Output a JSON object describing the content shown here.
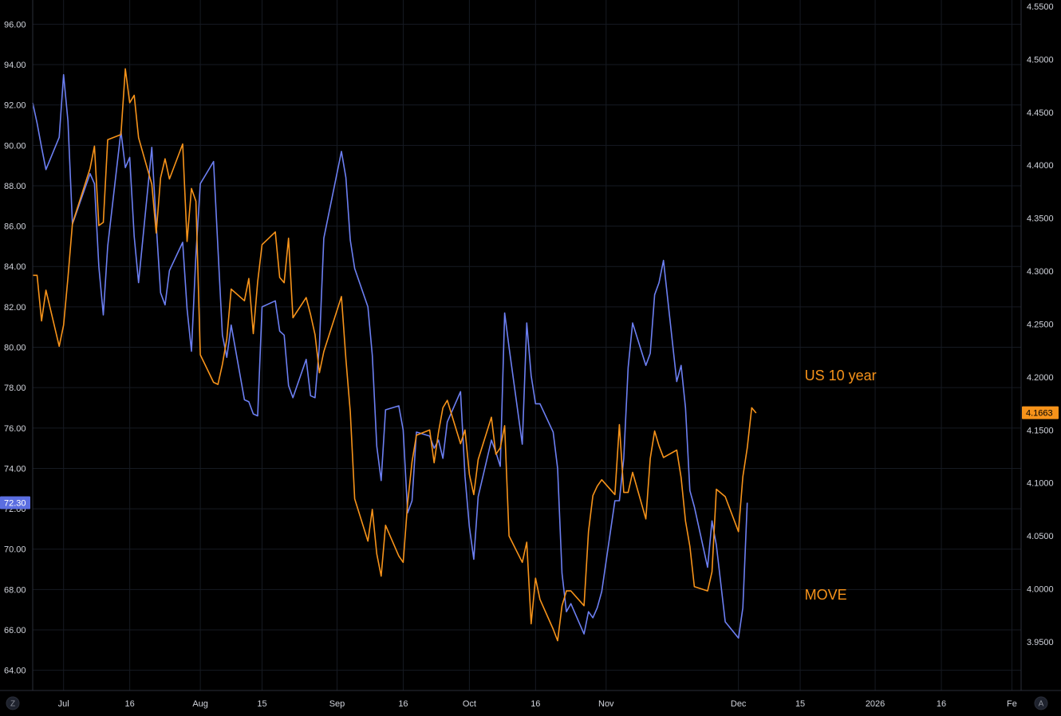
{
  "chart_data": {
    "type": "line",
    "grid": true,
    "left_axis": {
      "ylim": [
        63.0,
        97.2
      ],
      "ticks": [
        64,
        66,
        68,
        70,
        72,
        74,
        76,
        78,
        80,
        82,
        84,
        86,
        88,
        90,
        92,
        94,
        96
      ],
      "tick_labels": [
        "64.00",
        "66.00",
        "68.00",
        "70.00",
        "72.00",
        "74.00",
        "76.00",
        "78.00",
        "80.00",
        "82.00",
        "84.00",
        "86.00",
        "88.00",
        "90.00",
        "92.00",
        "94.00",
        "96.00"
      ],
      "last_value_label": "72.30",
      "last_value": 72.3,
      "badge_color": "#5b6ee1"
    },
    "right_axis": {
      "ylim": [
        3.904,
        4.556
      ],
      "ticks": [
        3.95,
        4.0,
        4.05,
        4.1,
        4.15,
        4.2,
        4.25,
        4.3,
        4.35,
        4.4,
        4.45,
        4.5,
        4.55
      ],
      "tick_labels": [
        "3.9500",
        "4.0000",
        "4.0500",
        "4.1000",
        "4.1500",
        "4.2000",
        "4.2500",
        "4.3000",
        "4.3500",
        "4.4000",
        "4.4500",
        "4.5000",
        "4.5500"
      ],
      "last_value_label": "4.1663",
      "last_value": 4.1663,
      "badge_color": "#f7931a"
    },
    "x_axis": {
      "labels": [
        {
          "text": "Jul",
          "date": "2025-07-01"
        },
        {
          "text": "16",
          "date": "2025-07-16"
        },
        {
          "text": "Aug",
          "date": "2025-08-01"
        },
        {
          "text": "15",
          "date": "2025-08-15"
        },
        {
          "text": "Sep",
          "date": "2025-09-01"
        },
        {
          "text": "16",
          "date": "2025-09-16"
        },
        {
          "text": "Oct",
          "date": "2025-10-01"
        },
        {
          "text": "16",
          "date": "2025-10-16"
        },
        {
          "text": "Nov",
          "date": "2025-11-01"
        },
        {
          "text": "Dec",
          "date": "2025-12-01"
        },
        {
          "text": "15",
          "date": "2025-12-15"
        },
        {
          "text": "2026",
          "date": "2026-01-01"
        },
        {
          "text": "16",
          "date": "2026-01-16"
        },
        {
          "text": "Fe",
          "date": "2026-02-01"
        }
      ]
    },
    "annotations": [
      {
        "text": "US 10 year",
        "color": "#f7931a",
        "axis": "right",
        "x": "2025-12-16",
        "y": 4.197
      },
      {
        "text": "MOVE",
        "color": "#f7931a",
        "axis": "left",
        "x": "2025-12-16",
        "y": 67.5
      }
    ],
    "series": [
      {
        "axis": "left",
        "color": "#6c7ff2",
        "points": [
          [
            "2025-06-24",
            92.1
          ],
          [
            "2025-06-25",
            91.1
          ],
          [
            "2025-06-26",
            89.9
          ],
          [
            "2025-06-27",
            88.8
          ],
          [
            "2025-06-30",
            90.4
          ],
          [
            "2025-07-01",
            93.5
          ],
          [
            "2025-07-02",
            91.2
          ],
          [
            "2025-07-03",
            86.1
          ],
          [
            "2025-07-07",
            88.6
          ],
          [
            "2025-07-08",
            88.1
          ],
          [
            "2025-07-09",
            84.0
          ],
          [
            "2025-07-10",
            81.6
          ],
          [
            "2025-07-11",
            85.0
          ],
          [
            "2025-07-14",
            90.7
          ],
          [
            "2025-07-15",
            88.9
          ],
          [
            "2025-07-16",
            89.4
          ],
          [
            "2025-07-17",
            85.5
          ],
          [
            "2025-07-18",
            83.2
          ],
          [
            "2025-07-21",
            89.9
          ],
          [
            "2025-07-22",
            86.1
          ],
          [
            "2025-07-23",
            82.7
          ],
          [
            "2025-07-24",
            82.1
          ],
          [
            "2025-07-25",
            83.8
          ],
          [
            "2025-07-28",
            85.2
          ],
          [
            "2025-07-29",
            81.9
          ],
          [
            "2025-07-30",
            79.8
          ],
          [
            "2025-07-31",
            84.6
          ],
          [
            "2025-08-01",
            88.1
          ],
          [
            "2025-08-04",
            89.2
          ],
          [
            "2025-08-05",
            84.9
          ],
          [
            "2025-08-06",
            80.6
          ],
          [
            "2025-08-07",
            79.5
          ],
          [
            "2025-08-08",
            81.1
          ],
          [
            "2025-08-11",
            77.4
          ],
          [
            "2025-08-12",
            77.3
          ],
          [
            "2025-08-13",
            76.7
          ],
          [
            "2025-08-14",
            76.6
          ],
          [
            "2025-08-15",
            82.0
          ],
          [
            "2025-08-18",
            82.3
          ],
          [
            "2025-08-19",
            80.8
          ],
          [
            "2025-08-20",
            80.6
          ],
          [
            "2025-08-21",
            78.1
          ],
          [
            "2025-08-22",
            77.5
          ],
          [
            "2025-08-25",
            79.4
          ],
          [
            "2025-08-26",
            77.6
          ],
          [
            "2025-08-27",
            77.5
          ],
          [
            "2025-08-28",
            80.1
          ],
          [
            "2025-08-29",
            85.4
          ],
          [
            "2025-09-02",
            89.7
          ],
          [
            "2025-09-03",
            88.4
          ],
          [
            "2025-09-04",
            85.3
          ],
          [
            "2025-09-05",
            83.9
          ],
          [
            "2025-09-08",
            82.0
          ],
          [
            "2025-09-09",
            79.6
          ],
          [
            "2025-09-10",
            75.1
          ],
          [
            "2025-09-11",
            73.4
          ],
          [
            "2025-09-12",
            76.9
          ],
          [
            "2025-09-15",
            77.1
          ],
          [
            "2025-09-16",
            75.9
          ],
          [
            "2025-09-17",
            71.8
          ],
          [
            "2025-09-18",
            72.4
          ],
          [
            "2025-09-19",
            75.8
          ],
          [
            "2025-09-22",
            75.6
          ],
          [
            "2025-09-23",
            75.0
          ],
          [
            "2025-09-24",
            75.4
          ],
          [
            "2025-09-25",
            74.5
          ],
          [
            "2025-09-26",
            76.3
          ],
          [
            "2025-09-29",
            77.8
          ],
          [
            "2025-09-30",
            73.6
          ],
          [
            "2025-10-01",
            71.1
          ],
          [
            "2025-10-02",
            69.5
          ],
          [
            "2025-10-03",
            72.6
          ],
          [
            "2025-10-06",
            75.4
          ],
          [
            "2025-10-07",
            74.8
          ],
          [
            "2025-10-08",
            74.1
          ],
          [
            "2025-10-09",
            81.7
          ],
          [
            "2025-10-10",
            80.0
          ],
          [
            "2025-10-13",
            75.2
          ],
          [
            "2025-10-14",
            81.2
          ],
          [
            "2025-10-15",
            78.6
          ],
          [
            "2025-10-16",
            77.2
          ],
          [
            "2025-10-17",
            77.2
          ],
          [
            "2025-10-20",
            75.8
          ],
          [
            "2025-10-21",
            74.0
          ],
          [
            "2025-10-22",
            68.8
          ],
          [
            "2025-10-23",
            66.9
          ],
          [
            "2025-10-24",
            67.3
          ],
          [
            "2025-10-27",
            65.8
          ],
          [
            "2025-10-28",
            66.9
          ],
          [
            "2025-10-29",
            66.6
          ],
          [
            "2025-10-30",
            67.1
          ],
          [
            "2025-10-31",
            67.9
          ],
          [
            "2025-11-03",
            72.4
          ],
          [
            "2025-11-04",
            72.4
          ],
          [
            "2025-11-05",
            74.5
          ],
          [
            "2025-11-06",
            79.0
          ],
          [
            "2025-11-07",
            81.2
          ],
          [
            "2025-11-10",
            79.1
          ],
          [
            "2025-11-11",
            79.7
          ],
          [
            "2025-11-12",
            82.6
          ],
          [
            "2025-11-13",
            83.2
          ],
          [
            "2025-11-14",
            84.3
          ],
          [
            "2025-11-17",
            78.3
          ],
          [
            "2025-11-18",
            79.1
          ],
          [
            "2025-11-19",
            77.0
          ],
          [
            "2025-11-20",
            72.9
          ],
          [
            "2025-11-21",
            72.1
          ],
          [
            "2025-11-24",
            69.1
          ],
          [
            "2025-11-25",
            71.4
          ],
          [
            "2025-11-26",
            70.2
          ],
          [
            "2025-11-28",
            66.4
          ],
          [
            "2025-12-01",
            65.6
          ],
          [
            "2025-12-02",
            67.1
          ],
          [
            "2025-12-03",
            72.3
          ]
        ]
      },
      {
        "axis": "right",
        "color": "#f7931a",
        "points": [
          [
            "2025-06-24",
            4.296
          ],
          [
            "2025-06-25",
            4.296
          ],
          [
            "2025-06-26",
            4.253
          ],
          [
            "2025-06-27",
            4.282
          ],
          [
            "2025-06-30",
            4.229
          ],
          [
            "2025-07-01",
            4.249
          ],
          [
            "2025-07-02",
            4.294
          ],
          [
            "2025-07-03",
            4.345
          ],
          [
            "2025-07-07",
            4.397
          ],
          [
            "2025-07-08",
            4.418
          ],
          [
            "2025-07-09",
            4.343
          ],
          [
            "2025-07-10",
            4.346
          ],
          [
            "2025-07-11",
            4.424
          ],
          [
            "2025-07-14",
            4.429
          ],
          [
            "2025-07-15",
            4.491
          ],
          [
            "2025-07-16",
            4.459
          ],
          [
            "2025-07-17",
            4.466
          ],
          [
            "2025-07-18",
            4.426
          ],
          [
            "2025-07-21",
            4.382
          ],
          [
            "2025-07-22",
            4.336
          ],
          [
            "2025-07-23",
            4.388
          ],
          [
            "2025-07-24",
            4.406
          ],
          [
            "2025-07-25",
            4.387
          ],
          [
            "2025-07-28",
            4.42
          ],
          [
            "2025-07-29",
            4.328
          ],
          [
            "2025-07-30",
            4.378
          ],
          [
            "2025-07-31",
            4.366
          ],
          [
            "2025-08-01",
            4.221
          ],
          [
            "2025-08-04",
            4.195
          ],
          [
            "2025-08-05",
            4.193
          ],
          [
            "2025-08-06",
            4.212
          ],
          [
            "2025-08-07",
            4.236
          ],
          [
            "2025-08-08",
            4.283
          ],
          [
            "2025-08-11",
            4.272
          ],
          [
            "2025-08-12",
            4.293
          ],
          [
            "2025-08-13",
            4.241
          ],
          [
            "2025-08-14",
            4.29
          ],
          [
            "2025-08-15",
            4.325
          ],
          [
            "2025-08-18",
            4.337
          ],
          [
            "2025-08-19",
            4.294
          ],
          [
            "2025-08-20",
            4.289
          ],
          [
            "2025-08-21",
            4.331
          ],
          [
            "2025-08-22",
            4.256
          ],
          [
            "2025-08-25",
            4.275
          ],
          [
            "2025-08-26",
            4.259
          ],
          [
            "2025-08-27",
            4.24
          ],
          [
            "2025-08-28",
            4.204
          ],
          [
            "2025-08-29",
            4.224
          ],
          [
            "2025-09-02",
            4.276
          ],
          [
            "2025-09-03",
            4.217
          ],
          [
            "2025-09-04",
            4.167
          ],
          [
            "2025-09-05",
            4.085
          ],
          [
            "2025-09-08",
            4.045
          ],
          [
            "2025-09-09",
            4.075
          ],
          [
            "2025-09-10",
            4.033
          ],
          [
            "2025-09-11",
            4.012
          ],
          [
            "2025-09-12",
            4.06
          ],
          [
            "2025-09-15",
            4.031
          ],
          [
            "2025-09-16",
            4.025
          ],
          [
            "2025-09-17",
            4.081
          ],
          [
            "2025-09-18",
            4.12
          ],
          [
            "2025-09-19",
            4.145
          ],
          [
            "2025-09-22",
            4.15
          ],
          [
            "2025-09-23",
            4.119
          ],
          [
            "2025-09-24",
            4.148
          ],
          [
            "2025-09-25",
            4.171
          ],
          [
            "2025-09-26",
            4.178
          ],
          [
            "2025-09-29",
            4.137
          ],
          [
            "2025-09-30",
            4.15
          ],
          [
            "2025-10-01",
            4.108
          ],
          [
            "2025-10-02",
            4.089
          ],
          [
            "2025-10-03",
            4.122
          ],
          [
            "2025-10-06",
            4.162
          ],
          [
            "2025-10-07",
            4.127
          ],
          [
            "2025-10-08",
            4.133
          ],
          [
            "2025-10-09",
            4.154
          ],
          [
            "2025-10-10",
            4.05
          ],
          [
            "2025-10-13",
            4.025
          ],
          [
            "2025-10-14",
            4.044
          ],
          [
            "2025-10-15",
            3.967
          ],
          [
            "2025-10-16",
            4.01
          ],
          [
            "2025-10-17",
            3.99
          ],
          [
            "2025-10-20",
            3.962
          ],
          [
            "2025-10-21",
            3.951
          ],
          [
            "2025-10-22",
            3.984
          ],
          [
            "2025-10-23",
            3.998
          ],
          [
            "2025-10-24",
            3.998
          ],
          [
            "2025-10-27",
            3.984
          ],
          [
            "2025-10-28",
            4.054
          ],
          [
            "2025-10-29",
            4.088
          ],
          [
            "2025-10-30",
            4.097
          ],
          [
            "2025-10-31",
            4.103
          ],
          [
            "2025-11-03",
            4.089
          ],
          [
            "2025-11-04",
            4.155
          ],
          [
            "2025-11-05",
            4.091
          ],
          [
            "2025-11-06",
            4.091
          ],
          [
            "2025-11-07",
            4.11
          ],
          [
            "2025-11-10",
            4.066
          ],
          [
            "2025-11-11",
            4.123
          ],
          [
            "2025-11-12",
            4.149
          ],
          [
            "2025-11-13",
            4.135
          ],
          [
            "2025-11-14",
            4.124
          ],
          [
            "2025-11-17",
            4.131
          ],
          [
            "2025-11-18",
            4.105
          ],
          [
            "2025-11-19",
            4.064
          ],
          [
            "2025-11-20",
            4.04
          ],
          [
            "2025-11-21",
            4.002
          ],
          [
            "2025-11-24",
            3.998
          ],
          [
            "2025-11-25",
            4.016
          ],
          [
            "2025-11-26",
            4.094
          ],
          [
            "2025-11-28",
            4.087
          ],
          [
            "2025-12-01",
            4.054
          ],
          [
            "2025-12-02",
            4.106
          ],
          [
            "2025-12-03",
            4.133
          ],
          [
            "2025-12-04",
            4.171
          ],
          [
            "2025-12-05",
            4.166
          ]
        ]
      }
    ]
  },
  "corner_buttons": {
    "left": "Z",
    "right": "A"
  },
  "colors": {
    "background": "#000000",
    "grid": "#161a22",
    "axis_line": "#2a2e39",
    "tick_text": "#d1d4dc"
  }
}
